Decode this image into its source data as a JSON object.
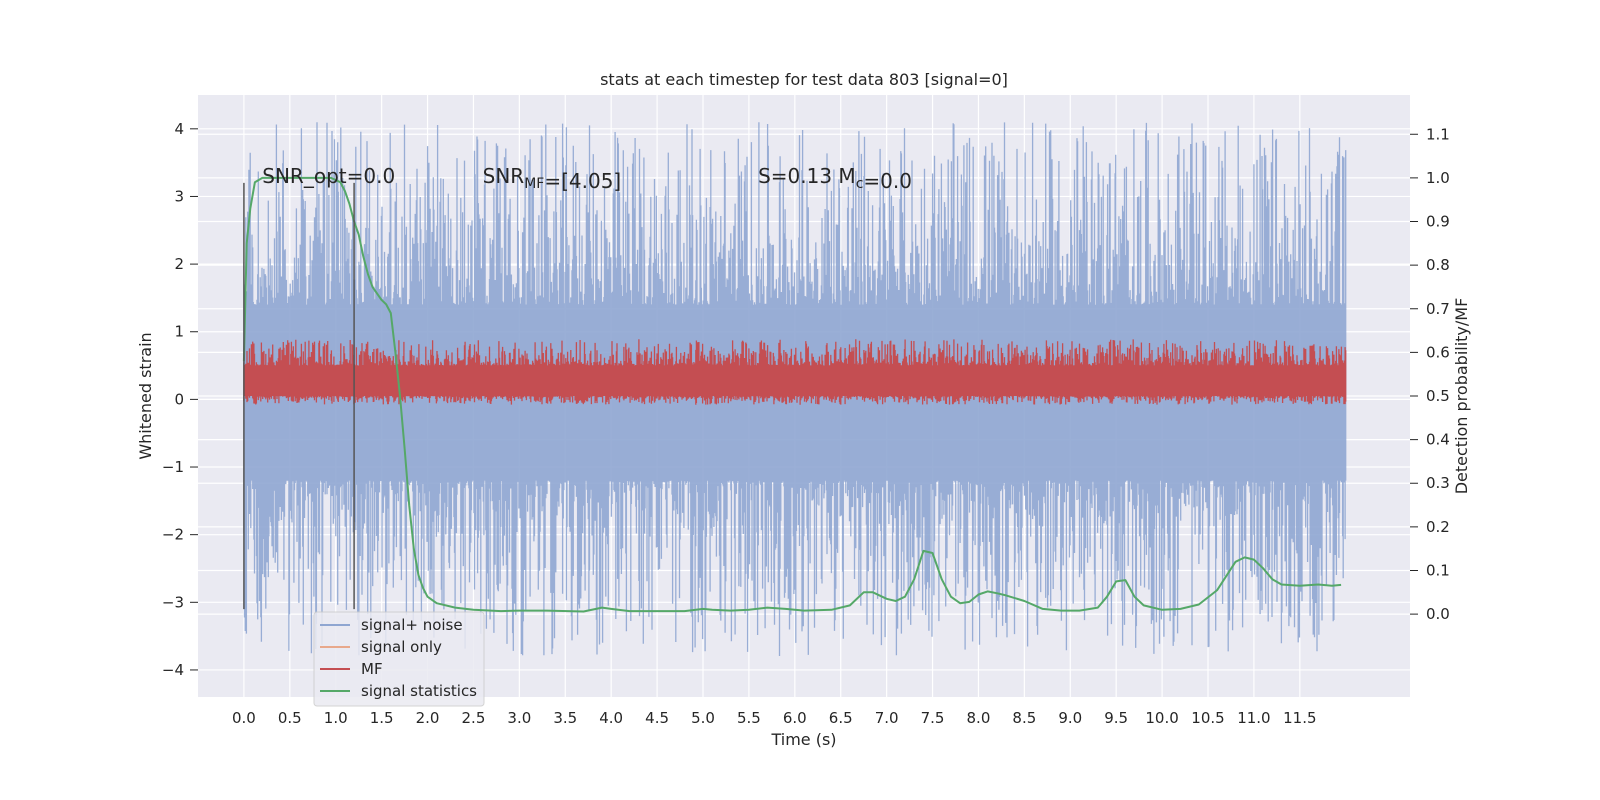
{
  "chart_data": {
    "type": "line",
    "title": "stats at each timestep for test data 803 [signal=0]",
    "xlabel": "Time (s)",
    "ylabel": "Whitened strain",
    "ylabel_right": "Detection probability/MF",
    "xlim": [
      -0.5,
      12.7
    ],
    "ylim": [
      -4.4,
      4.5
    ],
    "ylim_right": [
      -0.19,
      1.19
    ],
    "x_ticks": [
      "0.0",
      "0.5",
      "1.0",
      "1.5",
      "2.0",
      "2.5",
      "3.0",
      "3.5",
      "4.0",
      "4.5",
      "5.0",
      "5.5",
      "6.0",
      "6.5",
      "7.0",
      "7.5",
      "8.0",
      "8.5",
      "9.0",
      "9.5",
      "10.0",
      "10.5",
      "11.0",
      "11.5"
    ],
    "y_ticks": [
      "4",
      "3",
      "2",
      "1",
      "0",
      "−1",
      "−2",
      "−3",
      "−4"
    ],
    "y_ticks_right": [
      "1.1",
      "1.0",
      "0.9",
      "0.8",
      "0.7",
      "0.6",
      "0.5",
      "0.4",
      "0.3",
      "0.2",
      "0.1",
      "0.0"
    ],
    "grid": true,
    "annotations": [
      {
        "text": "SNR_opt=0.0",
        "x": 0.2,
        "y": 3.3
      },
      {
        "text": "SNR_MF=[4.05]",
        "x": 2.6,
        "y": 3.3
      },
      {
        "text": "S=0.13   M_c=0.0",
        "x": 5.6,
        "y": 3.3
      }
    ],
    "vertical_markers": [
      {
        "x": 0.0,
        "ymin": -3.1,
        "ymax": 3.2
      },
      {
        "x": 1.2,
        "ymin": -3.1,
        "ymax": 3.2
      }
    ],
    "legend": {
      "placement": "lower-left",
      "entries": [
        {
          "label": "signal+ noise",
          "color": "#8fa6d1"
        },
        {
          "label": "signal only",
          "color": "#e8a88b"
        },
        {
          "label": "MF",
          "color": "#c44e52"
        },
        {
          "label": "signal statistics",
          "color": "#55a868"
        }
      ]
    },
    "series": [
      {
        "name": "signal+ noise",
        "axis": "left",
        "color": "#8fa6d1",
        "style": "dense-noise",
        "x_range": [
          0.0,
          12.0
        ],
        "band_low": -1.2,
        "band_high": 1.4,
        "spike_min": -3.8,
        "spike_max": 4.1
      },
      {
        "name": "MF",
        "axis": "right",
        "color": "#c44e52",
        "style": "dense-noise",
        "x_range": [
          0.0,
          12.0
        ],
        "band_low": 0.5,
        "band_high": 0.57,
        "spike_min": 0.48,
        "spike_max": 0.63
      },
      {
        "name": "signal statistics",
        "axis": "right",
        "color": "#55a868",
        "x": [
          0.0,
          0.03,
          0.07,
          0.12,
          0.2,
          0.3,
          0.5,
          0.8,
          0.95,
          1.05,
          1.1,
          1.15,
          1.2,
          1.25,
          1.3,
          1.35,
          1.4,
          1.5,
          1.55,
          1.6,
          1.65,
          1.7,
          1.75,
          1.8,
          1.85,
          1.9,
          1.95,
          2.0,
          2.1,
          2.3,
          2.5,
          2.8,
          3.0,
          3.3,
          3.7,
          3.9,
          4.0,
          4.2,
          4.5,
          4.8,
          5.0,
          5.1,
          5.3,
          5.5,
          5.7,
          5.9,
          6.1,
          6.4,
          6.6,
          6.75,
          6.85,
          7.0,
          7.1,
          7.2,
          7.3,
          7.4,
          7.5,
          7.6,
          7.7,
          7.8,
          7.9,
          8.0,
          8.1,
          8.2,
          8.3,
          8.5,
          8.7,
          8.9,
          9.1,
          9.3,
          9.4,
          9.5,
          9.6,
          9.7,
          9.8,
          10.0,
          10.2,
          10.4,
          10.6,
          10.8,
          10.9,
          11.0,
          11.1,
          11.2,
          11.3,
          11.5,
          11.7,
          11.85,
          11.95
        ],
        "y": [
          0.58,
          0.85,
          0.93,
          0.99,
          1.0,
          1.0,
          1.0,
          1.0,
          1.0,
          0.99,
          0.97,
          0.94,
          0.9,
          0.87,
          0.82,
          0.78,
          0.75,
          0.72,
          0.71,
          0.69,
          0.6,
          0.5,
          0.38,
          0.25,
          0.15,
          0.09,
          0.06,
          0.04,
          0.025,
          0.015,
          0.01,
          0.007,
          0.008,
          0.008,
          0.006,
          0.015,
          0.012,
          0.007,
          0.007,
          0.007,
          0.012,
          0.01,
          0.008,
          0.01,
          0.015,
          0.012,
          0.008,
          0.01,
          0.02,
          0.05,
          0.05,
          0.035,
          0.03,
          0.04,
          0.08,
          0.145,
          0.14,
          0.08,
          0.04,
          0.025,
          0.028,
          0.045,
          0.052,
          0.048,
          0.043,
          0.03,
          0.012,
          0.008,
          0.008,
          0.015,
          0.04,
          0.075,
          0.078,
          0.04,
          0.02,
          0.01,
          0.012,
          0.022,
          0.055,
          0.12,
          0.13,
          0.125,
          0.105,
          0.08,
          0.068,
          0.065,
          0.068,
          0.065,
          0.067
        ]
      }
    ]
  }
}
